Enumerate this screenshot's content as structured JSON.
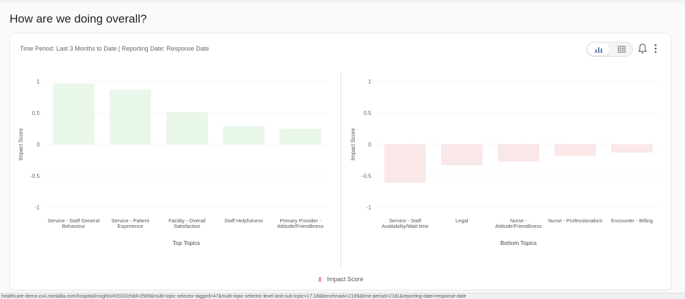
{
  "page": {
    "title": "How are we doing overall?"
  },
  "card": {
    "subtitle": "Time Period: Last 3 Months to Date | Reporting Date: Response Date",
    "legend_label": "Impact Score"
  },
  "icons": {
    "bar_view": "bar-chart-icon",
    "table_view": "table-grid-icon",
    "bell": "bell-icon",
    "menu": "kebab-menu-icon"
  },
  "colors": {
    "positive_bar": "#e9f6ea",
    "negative_bar": "#fae7e7",
    "legend_green": "#9bd09b",
    "legend_red": "#f09a9a"
  },
  "chart_data": [
    {
      "type": "bar",
      "xlabel": "Top Topics",
      "ylabel": "Impact Score",
      "ylim": [
        -1,
        1
      ],
      "yticks": [
        "1",
        "0.5",
        "0",
        "-0.5",
        "-1"
      ],
      "categories": [
        [
          "Service - Staff General",
          "Behaviour"
        ],
        [
          "Service - Patient",
          "Experience"
        ],
        [
          "Facility - Overall",
          "Satisfaction"
        ],
        [
          "Staff Helpfulness"
        ],
        [
          "Primary Provider -",
          "Attitude/Friendliness"
        ]
      ],
      "values": [
        0.97,
        0.87,
        0.51,
        0.29,
        0.25
      ],
      "grid": true
    },
    {
      "type": "bar",
      "xlabel": "Bottom Topics",
      "ylabel": "Impact Score",
      "ylim": [
        -1,
        1
      ],
      "yticks": [
        "1",
        "0.5",
        "0",
        "-0.5",
        "-1"
      ],
      "categories": [
        [
          "Service - Staff",
          "Availability/Wait time"
        ],
        [
          "Legal"
        ],
        [
          "Nurse -",
          "Attitude/Friendliness"
        ],
        [
          "Nurse - Professionalism"
        ],
        [
          "Encounter - Billing"
        ]
      ],
      "values": [
        -0.61,
        -0.33,
        -0.27,
        -0.18,
        -0.13
      ],
      "grid": true
    }
  ],
  "footer": {
    "url_text": "healthcare-demo.cx4.medallia.com/hospital/insights/#2022/child=2589&multi-topic-selector-tagged=47&multi-topic-selector-level-and-sub-topic=17.18&benchmark=2199&time-period=2181&reporting-date=response-date"
  }
}
